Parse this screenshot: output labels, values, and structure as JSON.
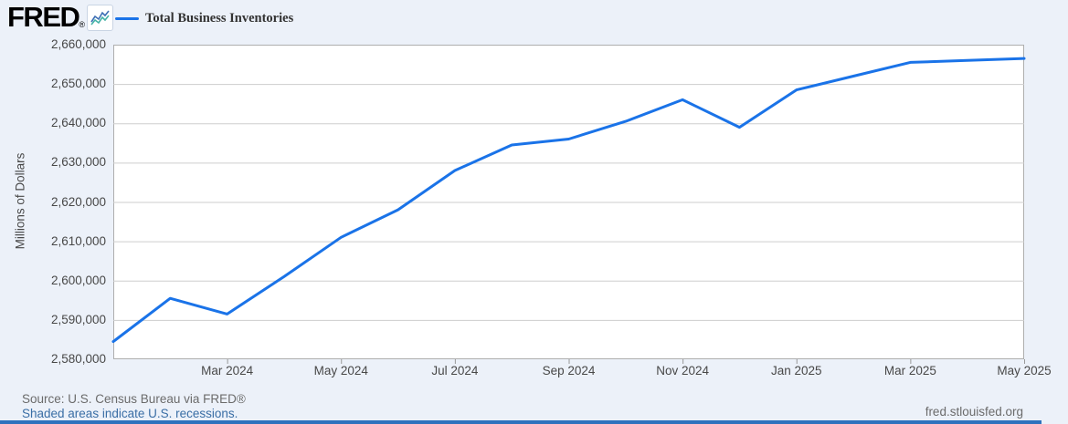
{
  "header": {
    "logo_text": "FRED",
    "logo_trademark": "®",
    "legend": {
      "series_label": "Total Business Inventories",
      "swatch_color": "#1a73e8"
    }
  },
  "chart_data": {
    "type": "line",
    "title": "Total Business Inventories",
    "ylabel": "Millions of Dollars",
    "ylim": [
      2580000,
      2660000
    ],
    "ytick_step": 10000,
    "grid": true,
    "legend_position": "top-left",
    "line_color": "#1a73e8",
    "x": [
      "Jan 2024",
      "Feb 2024",
      "Mar 2024",
      "Apr 2024",
      "May 2024",
      "Jun 2024",
      "Jul 2024",
      "Aug 2024",
      "Sep 2024",
      "Oct 2024",
      "Nov 2024",
      "Dec 2024",
      "Jan 2025",
      "Feb 2025",
      "Mar 2025",
      "Apr 2025",
      "May 2025"
    ],
    "values": [
      2584500,
      2595500,
      2591500,
      2601000,
      2611000,
      2618000,
      2628000,
      2634500,
      2636000,
      2640500,
      2646000,
      2639000,
      2648500,
      2652000,
      2655500,
      2656000,
      2656500
    ],
    "xtick_indices": [
      2,
      4,
      6,
      8,
      10,
      12,
      14,
      16
    ],
    "xtick_labels": [
      "Mar 2024",
      "May 2024",
      "Jul 2024",
      "Sep 2024",
      "Nov 2024",
      "Jan 2025",
      "Mar 2025",
      "May 2025"
    ]
  },
  "footer": {
    "source": "Source: U.S. Census Bureau via FRED®",
    "recession_note": "Shaded areas indicate U.S. recessions.",
    "site": "fred.stlouisfed.org"
  },
  "colors": {
    "background": "#ecf1f9",
    "plot_background": "#ffffff",
    "gridline": "#cdcdcd",
    "plot_border": "#aeaeae",
    "line": "#1a73e8",
    "bottom_bar": "#2e71bd",
    "axis_text": "#484848",
    "link": "#3a6ea5"
  }
}
